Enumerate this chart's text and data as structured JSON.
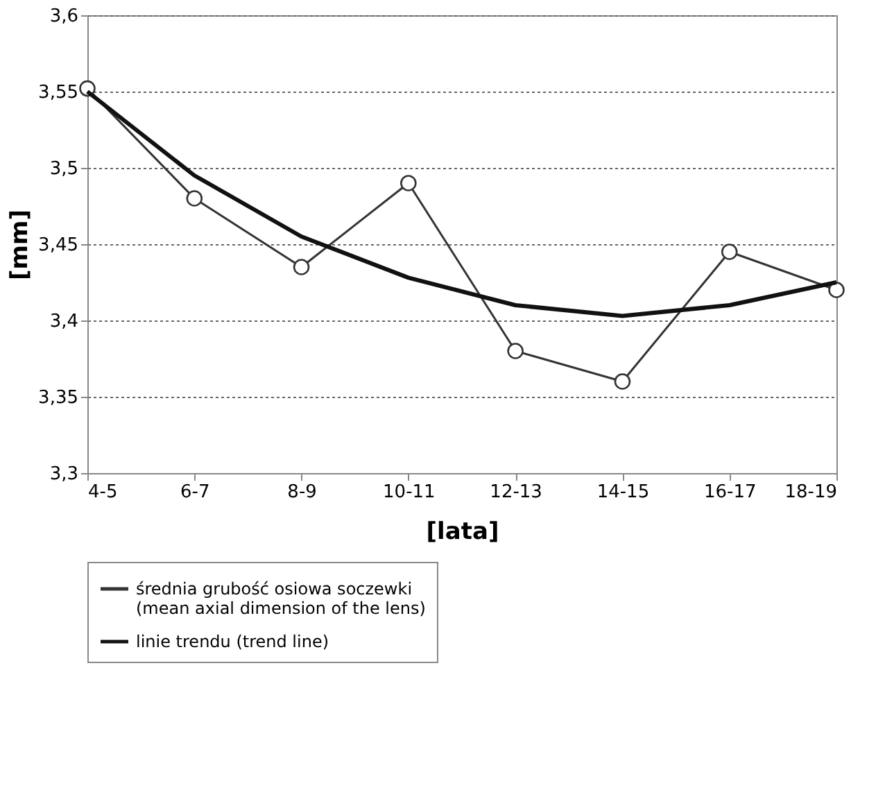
{
  "chart_data": {
    "type": "line",
    "xlabel": "[lata]",
    "ylabel": "[mm]",
    "categories": [
      "4-5",
      "6-7",
      "8-9",
      "10-11",
      "12-13",
      "14-15",
      "16-17",
      "18-19"
    ],
    "ylim": [
      3.3,
      3.6
    ],
    "yticks": [
      {
        "value": 3.3,
        "label": "3,3"
      },
      {
        "value": 3.35,
        "label": "3,35"
      },
      {
        "value": 3.4,
        "label": "3,4"
      },
      {
        "value": 3.45,
        "label": "3,45"
      },
      {
        "value": 3.5,
        "label": "3,5"
      },
      {
        "value": 3.55,
        "label": "3,55"
      },
      {
        "value": 3.6,
        "label": "3,6"
      }
    ],
    "grid": "y",
    "legend": "bottom",
    "series": [
      {
        "name": "średnia grubość osiowa soczewki\n(mean axial dimension of the lens)",
        "color": "#333333",
        "marker": "circle",
        "values": [
          3.552,
          3.48,
          3.435,
          3.49,
          3.38,
          3.36,
          3.445,
          3.42
        ]
      },
      {
        "name": "linie trendu (trend line)",
        "color": "#111111",
        "marker": "none",
        "values": [
          3.55,
          3.495,
          3.455,
          3.428,
          3.41,
          3.403,
          3.41,
          3.425
        ]
      }
    ]
  }
}
